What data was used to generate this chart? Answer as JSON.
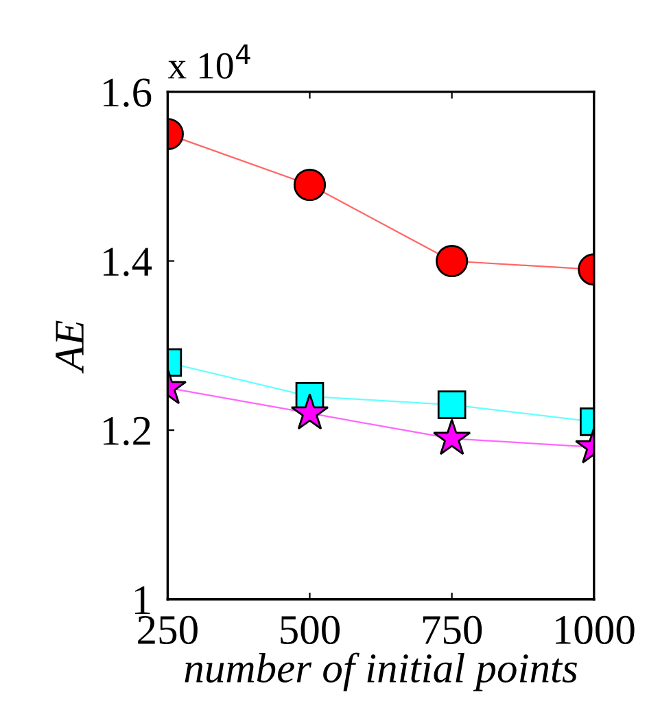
{
  "chart_data": {
    "type": "line",
    "xlabel": "number of initial points",
    "ylabel": "AE",
    "annotations": [
      "x 10$^{4}$"
    ],
    "x": [
      250,
      500,
      750,
      1000
    ],
    "xlim": [
      250,
      1000
    ],
    "xticks": [
      250,
      500,
      750,
      1000
    ],
    "ylim": [
      1,
      1.6
    ],
    "yticks": [
      1,
      1.2,
      1.4,
      1.6
    ],
    "grid": false,
    "line_style": "solid",
    "series": [
      {
        "color": "#ff0000",
        "marker": "circle",
        "values": [
          1.55,
          1.49,
          1.4,
          1.39
        ]
      },
      {
        "color": "#00ffff",
        "marker": "square",
        "values": [
          1.28,
          1.24,
          1.23,
          1.21
        ]
      },
      {
        "color": "#ff00ff",
        "marker": "star",
        "values": [
          1.25,
          1.22,
          1.19,
          1.18
        ]
      }
    ]
  }
}
